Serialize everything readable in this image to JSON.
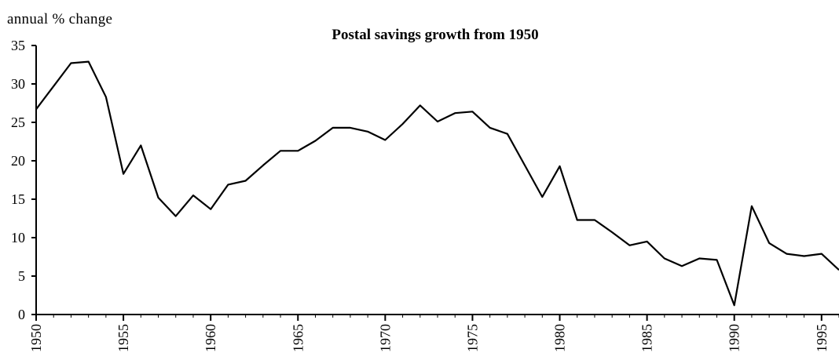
{
  "chart_data": {
    "type": "line",
    "title": "Postal savings growth from 1950",
    "ylabel": "annual % change",
    "xlabel": "",
    "ylim": [
      0,
      35
    ],
    "xlim": [
      1950,
      1996
    ],
    "yticks": [
      0,
      5,
      10,
      15,
      20,
      25,
      30,
      35
    ],
    "xticks": [
      1950,
      1955,
      1960,
      1965,
      1970,
      1975,
      1980,
      1985,
      1990,
      1995
    ],
    "grid": false,
    "legend": "none",
    "series": [
      {
        "color": "#000000",
        "x": [
          1950,
          1951,
          1952,
          1953,
          1954,
          1955,
          1956,
          1957,
          1958,
          1959,
          1960,
          1961,
          1962,
          1963,
          1964,
          1965,
          1966,
          1967,
          1968,
          1969,
          1970,
          1971,
          1972,
          1973,
          1974,
          1975,
          1976,
          1977,
          1978,
          1979,
          1980,
          1981,
          1982,
          1983,
          1984,
          1985,
          1986,
          1987,
          1988,
          1989,
          1990,
          1991,
          1992,
          1993,
          1994,
          1995,
          1996
        ],
        "y": [
          26.7,
          29.7,
          32.7,
          32.9,
          28.3,
          18.3,
          22.0,
          15.2,
          12.8,
          15.5,
          13.7,
          16.9,
          17.4,
          19.4,
          21.3,
          21.3,
          22.6,
          24.3,
          24.3,
          23.8,
          22.7,
          24.8,
          27.2,
          25.1,
          26.2,
          26.4,
          24.3,
          23.5,
          19.4,
          15.3,
          19.3,
          12.3,
          12.3,
          10.7,
          9.0,
          9.5,
          7.3,
          6.3,
          7.3,
          7.1,
          1.2,
          14.1,
          9.3,
          7.9,
          7.6,
          7.9,
          5.8
        ]
      }
    ]
  }
}
